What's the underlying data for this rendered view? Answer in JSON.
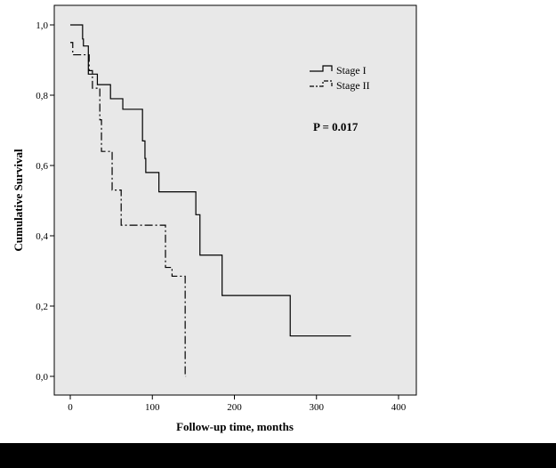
{
  "chart_data": {
    "type": "line",
    "subtype": "kaplan-meier-step",
    "title": "",
    "xlabel": "Follow-up time, months",
    "ylabel": "Cumulative Survival",
    "xlim": [
      0,
      400
    ],
    "ylim": [
      0,
      1
    ],
    "x_ticks": [
      0,
      100,
      200,
      300,
      400
    ],
    "x_tick_labels": [
      "0",
      "100",
      "200",
      "300",
      "400"
    ],
    "y_ticks": [
      0,
      0.2,
      0.4,
      0.6,
      0.8,
      1.0
    ],
    "y_tick_labels": [
      "0,0",
      "0,2",
      "0,4",
      "0,6",
      "0,8",
      "1,0"
    ],
    "grid": false,
    "plot_background": "#e8e8e8",
    "legend_position": "top-right",
    "annotation": "P = 0.017",
    "series": [
      {
        "name": "Stage I",
        "line_style": "solid",
        "color": "#000000",
        "steps": [
          [
            0,
            1.0
          ],
          [
            15,
            0.96
          ],
          [
            16,
            0.94
          ],
          [
            22,
            0.86
          ],
          [
            33,
            0.83
          ],
          [
            49,
            0.79
          ],
          [
            64,
            0.76
          ],
          [
            88,
            0.67
          ],
          [
            91,
            0.62
          ],
          [
            92,
            0.58
          ],
          [
            108,
            0.525
          ],
          [
            153,
            0.46
          ],
          [
            158,
            0.345
          ],
          [
            185,
            0.23
          ],
          [
            268,
            0.115
          ],
          [
            342,
            0.115
          ]
        ]
      },
      {
        "name": "Stage II",
        "line_style": "dashdot",
        "color": "#000000",
        "steps": [
          [
            0,
            0.95
          ],
          [
            3,
            0.915
          ],
          [
            23,
            0.87
          ],
          [
            27,
            0.82
          ],
          [
            36,
            0.73
          ],
          [
            38,
            0.64
          ],
          [
            51,
            0.53
          ],
          [
            62,
            0.43
          ],
          [
            116,
            0.31
          ],
          [
            124,
            0.285
          ],
          [
            140,
            0.0
          ],
          [
            141,
            0.0
          ]
        ]
      }
    ]
  }
}
